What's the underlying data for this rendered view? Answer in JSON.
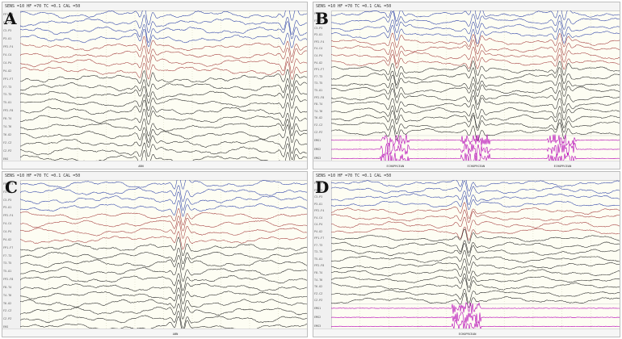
{
  "panels": [
    {
      "letter": "A",
      "header": "SENS =10  HF =70  TC =0.1  CAL =50",
      "channels": [
        "FP1-F3",
        "F3-C3",
        "C3-P3",
        "P3-O1",
        "FP2-F4",
        "F4-C4",
        "C4-P4",
        "P4-O2",
        "FP1-F7",
        "F7-T3",
        "T3-T5",
        "T5-O1",
        "FP2-F8",
        "F8-T4",
        "T4-T6",
        "T6-O2",
        "FZ-CZ",
        "CZ-PZ",
        "EKG"
      ],
      "colors": [
        "#2b3fa6",
        "#2b3fa6",
        "#2b3fa6",
        "#2b3fa6",
        "#a33a3a",
        "#a33a3a",
        "#a33a3a",
        "#a33a3a",
        "#222222",
        "#222222",
        "#222222",
        "#222222",
        "#222222",
        "#222222",
        "#222222",
        "#222222",
        "#222222",
        "#222222",
        "#222222"
      ],
      "emg_channels": 0,
      "discharges": [
        0.44,
        0.94
      ],
      "footer_labels": [
        "ABN"
      ]
    },
    {
      "letter": "B",
      "header": "SENS =10  HF =70  TC =0.1  CAL =50",
      "channels": [
        "FP1-F3",
        "F3-C3",
        "C3-P3",
        "P3-O1",
        "FP2-F4",
        "F4-C4",
        "C4-P4",
        "P4-O2",
        "FP1-F7",
        "F7-T3",
        "T3-T5",
        "T5-O1",
        "FP2-F8",
        "F8-T4",
        "T4-T6",
        "T6-O2",
        "FZ-CZ",
        "CZ-PZ",
        "EMG1",
        "EMG2",
        "EMG3"
      ],
      "colors": [
        "#2b3fa6",
        "#2b3fa6",
        "#2b3fa6",
        "#2b3fa6",
        "#a33a3a",
        "#a33a3a",
        "#a33a3a",
        "#a33a3a",
        "#222222",
        "#222222",
        "#222222",
        "#222222",
        "#222222",
        "#222222",
        "#222222",
        "#222222",
        "#222222",
        "#222222",
        "#b400b4",
        "#b400b4",
        "#b400b4"
      ],
      "emg_channels": 3,
      "discharges": [
        0.22,
        0.5,
        0.8
      ],
      "footer_labels": [
        "ECHOPRCEAN",
        "ECHOPRCEAN",
        "ECHOPRCEAN"
      ]
    },
    {
      "letter": "C",
      "header": "SENS =10  HF =70  TC =0.1  CAL =50",
      "channels": [
        "FP1-F3",
        "F3-C3",
        "C3-P3",
        "P3-O1",
        "FP2-F4",
        "F4-C4",
        "C4-P4",
        "P4-O2",
        "FP1-F7",
        "F7-T3",
        "T3-T5",
        "T5-O1",
        "FP2-F8",
        "F8-T4",
        "T4-T6",
        "T6-O2",
        "FZ-CZ",
        "CZ-PZ",
        "EKG"
      ],
      "colors": [
        "#2b3fa6",
        "#2b3fa6",
        "#2b3fa6",
        "#2b3fa6",
        "#a33a3a",
        "#a33a3a",
        "#a33a3a",
        "#a33a3a",
        "#222222",
        "#222222",
        "#222222",
        "#222222",
        "#222222",
        "#222222",
        "#222222",
        "#222222",
        "#222222",
        "#222222",
        "#222222"
      ],
      "emg_channels": 0,
      "discharges": [
        0.56
      ],
      "footer_labels": [
        "ABN"
      ]
    },
    {
      "letter": "D",
      "header": "SENS =10  HF =70  TC =0.1  CAL =50",
      "channels": [
        "FP1-F3",
        "F3-C3",
        "C3-P3",
        "P3-O1",
        "FP2-F4",
        "F4-C4",
        "C4-P4",
        "P4-O2",
        "FP1-F7",
        "F7-T3",
        "T3-T5",
        "T5-O1",
        "FP2-F8",
        "F8-T4",
        "T4-T6",
        "T6-O2",
        "FZ-CZ",
        "CZ-PZ",
        "EMG1",
        "EMG2",
        "EMG3"
      ],
      "colors": [
        "#2b3fa6",
        "#2b3fa6",
        "#2b3fa6",
        "#2b3fa6",
        "#a33a3a",
        "#a33a3a",
        "#a33a3a",
        "#a33a3a",
        "#222222",
        "#222222",
        "#222222",
        "#222222",
        "#222222",
        "#222222",
        "#222222",
        "#222222",
        "#222222",
        "#222222",
        "#b400b4",
        "#b400b4",
        "#b400b4"
      ],
      "emg_channels": 3,
      "discharges": [
        0.47
      ],
      "footer_labels": [
        "ECHOPRCEAN"
      ]
    }
  ]
}
